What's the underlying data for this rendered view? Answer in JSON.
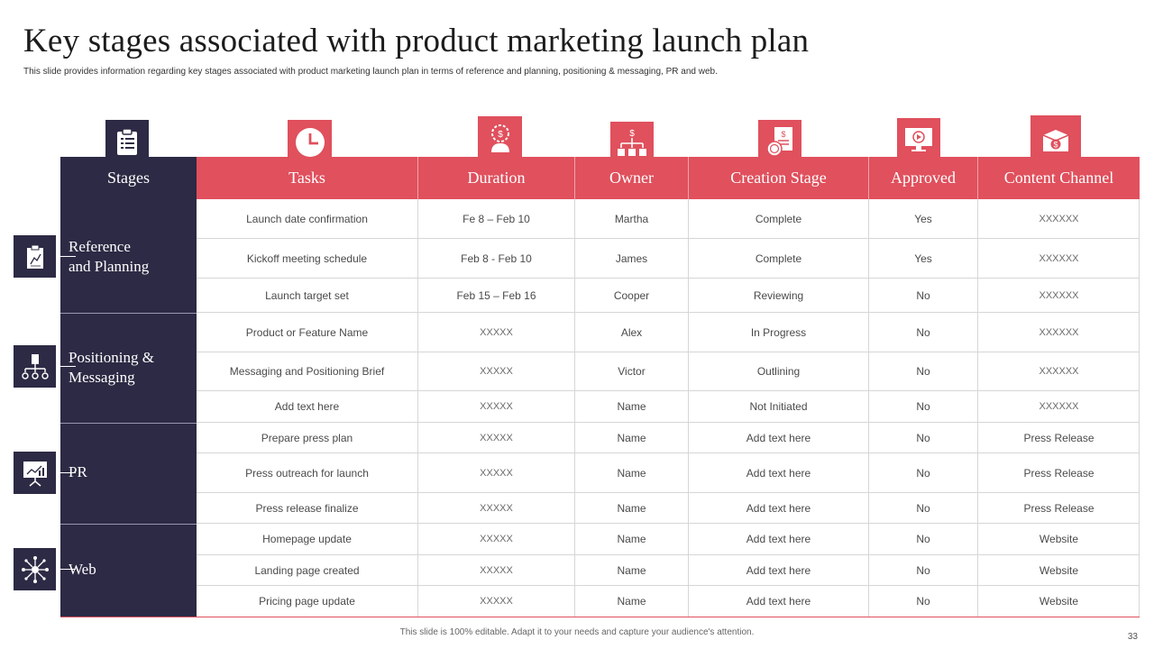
{
  "title": "Key stages associated with product marketing launch plan",
  "subtitle": "This slide provides information regarding key stages associated with product marketing launch plan in terms of reference and planning, positioning & messaging, PR and web.",
  "headers": {
    "stages": "Stages",
    "tasks": "Tasks",
    "duration": "Duration",
    "owner": "Owner",
    "creation_stage": "Creation Stage",
    "approved": "Approved",
    "content_channel": "Content Channel"
  },
  "header_icons": [
    "clipboard-icon",
    "clock-icon",
    "money-person-icon",
    "org-chart-dollar-icon",
    "certificate-dollar-icon",
    "monitor-play-icon",
    "dollar-box-icon"
  ],
  "stages": [
    {
      "label": "Reference\nand Planning",
      "icon": "clipboard-chart-icon"
    },
    {
      "label": "Positioning &\nMessaging",
      "icon": "building-network-icon"
    },
    {
      "label": "PR",
      "icon": "presentation-board-icon"
    },
    {
      "label": "Web",
      "icon": "network-hub-icon"
    }
  ],
  "rows": [
    {
      "task": "Launch date confirmation",
      "duration": "Fe 8 – Feb 10",
      "owner": "Martha",
      "creation": "Complete",
      "approved": "Yes",
      "channel": "XXXXXX"
    },
    {
      "task": "Kickoff meeting schedule",
      "duration": "Feb 8 -  Feb 10",
      "owner": "James",
      "creation": "Complete",
      "approved": "Yes",
      "channel": "XXXXXX"
    },
    {
      "task": "Launch target set",
      "duration": "Feb 15 – Feb 16",
      "owner": "Cooper",
      "creation": "Reviewing",
      "approved": "No",
      "channel": "XXXXXX"
    },
    {
      "task": "Product or Feature Name",
      "duration": "XXXXX",
      "owner": "Alex",
      "creation": "In Progress",
      "approved": "No",
      "channel": "XXXXXX"
    },
    {
      "task": "Messaging and Positioning Brief",
      "duration": "XXXXX",
      "owner": "Victor",
      "creation": "Outlining",
      "approved": "No",
      "channel": "XXXXXX"
    },
    {
      "task": "Add text here",
      "duration": "XXXXX",
      "owner": "Name",
      "creation": "Not Initiated",
      "approved": "No",
      "channel": "XXXXXX"
    },
    {
      "task": "Prepare press plan",
      "duration": "XXXXX",
      "owner": "Name",
      "creation": "Add text here",
      "approved": "No",
      "channel": "Press Release"
    },
    {
      "task": "Press outreach for launch",
      "duration": "XXXXX",
      "owner": "Name",
      "creation": "Add text here",
      "approved": "No",
      "channel": "Press Release"
    },
    {
      "task": "Press release finalize",
      "duration": "XXXXX",
      "owner": "Name",
      "creation": "Add text here",
      "approved": "No",
      "channel": "Press Release"
    },
    {
      "task": "Homepage update",
      "duration": "XXXXX",
      "owner": "Name",
      "creation": "Add text here",
      "approved": "No",
      "channel": "Website"
    },
    {
      "task": "Landing page created",
      "duration": "XXXXX",
      "owner": "Name",
      "creation": "Add text here",
      "approved": "No",
      "channel": "Website"
    },
    {
      "task": "Pricing page update",
      "duration": "XXXXX",
      "owner": "Name",
      "creation": "Add text here",
      "approved": "No",
      "channel": "Website"
    }
  ],
  "footer": "This slide is 100% editable. Adapt it to your needs and capture your audience's attention.",
  "page_number": "33",
  "colors": {
    "accent": "#e0505d",
    "dark": "#2c2a44"
  }
}
